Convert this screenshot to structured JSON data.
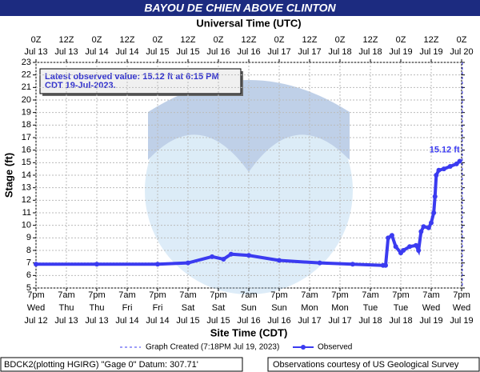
{
  "chart_data": {
    "type": "line",
    "title": "BAYOU DE CHIEN ABOVE CLINTON",
    "top_axis_title": "Universal Time (UTC)",
    "x_label": "Site Time (CDT)",
    "y_label": "Stage (ft)",
    "annotation": [
      "Latest observed value: 15.12 ft at 6:15 PM",
      "CDT 19-Jul-2023."
    ],
    "end_label": "15.12 ft",
    "created": {
      "label": "Graph Created (7:18PM Jul 19, 2023)",
      "x": "Jul 19 19:18"
    },
    "footer_left": "BDCK2(plotting HGIRG) \"Gage 0\" Datum: 307.71'",
    "footer_right": "Observations courtesy of US Geological Survey",
    "grid": true,
    "xlim": [
      "Jul 12 19:00",
      "Jul 19 19:00"
    ],
    "ylim": [
      5,
      23
    ],
    "yticks": [
      5,
      6,
      7,
      8,
      9,
      10,
      11,
      12,
      13,
      14,
      15,
      16,
      17,
      18,
      19,
      20,
      21,
      22,
      23
    ],
    "xticks": [
      {
        "value": "Jul 12 19:00",
        "label": [
          "7pm",
          "Wed",
          "Jul 12"
        ]
      },
      {
        "value": "Jul 13 07:00",
        "label": [
          "7am",
          "Thu",
          "Jul 13"
        ]
      },
      {
        "value": "Jul 13 19:00",
        "label": [
          "7pm",
          "Thu",
          "Jul 13"
        ]
      },
      {
        "value": "Jul 14 07:00",
        "label": [
          "7am",
          "Fri",
          "Jul 14"
        ]
      },
      {
        "value": "Jul 14 19:00",
        "label": [
          "7pm",
          "Fri",
          "Jul 14"
        ]
      },
      {
        "value": "Jul 15 07:00",
        "label": [
          "7am",
          "Sat",
          "Jul 15"
        ]
      },
      {
        "value": "Jul 15 19:00",
        "label": [
          "7pm",
          "Sat",
          "Jul 15"
        ]
      },
      {
        "value": "Jul 16 07:00",
        "label": [
          "7am",
          "Sun",
          "Jul 16"
        ]
      },
      {
        "value": "Jul 16 19:00",
        "label": [
          "7pm",
          "Sun",
          "Jul 16"
        ]
      },
      {
        "value": "Jul 17 07:00",
        "label": [
          "7am",
          "Mon",
          "Jul 17"
        ]
      },
      {
        "value": "Jul 17 19:00",
        "label": [
          "7pm",
          "Mon",
          "Jul 17"
        ]
      },
      {
        "value": "Jul 18 07:00",
        "label": [
          "7am",
          "Tue",
          "Jul 18"
        ]
      },
      {
        "value": "Jul 18 19:00",
        "label": [
          "7pm",
          "Tue",
          "Jul 18"
        ]
      },
      {
        "value": "Jul 19 07:00",
        "label": [
          "7am",
          "Wed",
          "Jul 19"
        ]
      },
      {
        "value": "Jul 19 19:00",
        "label": [
          "7pm",
          "Wed",
          "Jul 19"
        ]
      }
    ],
    "x2ticks": [
      {
        "value": "Jul 12 19:00",
        "label": [
          "0Z",
          "Jul 13"
        ]
      },
      {
        "value": "Jul 13 07:00",
        "label": [
          "12Z",
          "Jul 13"
        ]
      },
      {
        "value": "Jul 13 19:00",
        "label": [
          "0Z",
          "Jul 14"
        ]
      },
      {
        "value": "Jul 14 07:00",
        "label": [
          "12Z",
          "Jul 14"
        ]
      },
      {
        "value": "Jul 14 19:00",
        "label": [
          "0Z",
          "Jul 15"
        ]
      },
      {
        "value": "Jul 15 07:00",
        "label": [
          "12Z",
          "Jul 15"
        ]
      },
      {
        "value": "Jul 15 19:00",
        "label": [
          "0Z",
          "Jul 16"
        ]
      },
      {
        "value": "Jul 16 07:00",
        "label": [
          "12Z",
          "Jul 16"
        ]
      },
      {
        "value": "Jul 16 19:00",
        "label": [
          "0Z",
          "Jul 17"
        ]
      },
      {
        "value": "Jul 17 07:00",
        "label": [
          "12Z",
          "Jul 17"
        ]
      },
      {
        "value": "Jul 17 19:00",
        "label": [
          "0Z",
          "Jul 18"
        ]
      },
      {
        "value": "Jul 18 07:00",
        "label": [
          "12Z",
          "Jul 18"
        ]
      },
      {
        "value": "Jul 18 19:00",
        "label": [
          "0Z",
          "Jul 19"
        ]
      },
      {
        "value": "Jul 19 07:00",
        "label": [
          "12Z",
          "Jul 19"
        ]
      },
      {
        "value": "Jul 19 19:00",
        "label": [
          "0Z",
          "Jul 20"
        ]
      }
    ],
    "x": [
      "Jul 12 19:00",
      "Jul 13 19:00",
      "Jul 14 19:00",
      "Jul 15 07:00",
      "Jul 15 16:30",
      "Jul 15 21:00",
      "Jul 16 00:00",
      "Jul 16 07:00",
      "Jul 16 19:00",
      "Jul 17 11:00",
      "Jul 18 00:00",
      "Jul 18 12:00",
      "Jul 18 13:00",
      "Jul 18 14:00",
      "Jul 18 15:30",
      "Jul 18 17:00",
      "Jul 18 19:00",
      "Jul 18 20:00",
      "Jul 18 22:30",
      "Jul 19 01:00",
      "Jul 19 02:00",
      "Jul 19 03:00",
      "Jul 19 04:00",
      "Jul 19 06:00",
      "Jul 19 07:00",
      "Jul 19 08:00",
      "Jul 19 08:30",
      "Jul 19 09:00",
      "Jul 19 10:00",
      "Jul 19 12:00",
      "Jul 19 14:30",
      "Jul 19 17:00",
      "Jul 19 18:15"
    ],
    "series": [
      {
        "name": "Observed",
        "color": "#3b3bf0",
        "values": [
          6.9,
          6.9,
          6.9,
          7.0,
          7.5,
          7.3,
          7.7,
          7.6,
          7.2,
          7.0,
          6.9,
          6.8,
          6.8,
          9.0,
          9.2,
          8.3,
          7.8,
          8.0,
          8.3,
          8.4,
          8.0,
          9.5,
          9.9,
          9.8,
          10.2,
          11.0,
          12.3,
          14.0,
          14.4,
          14.5,
          14.7,
          14.9,
          15.12
        ]
      }
    ]
  }
}
